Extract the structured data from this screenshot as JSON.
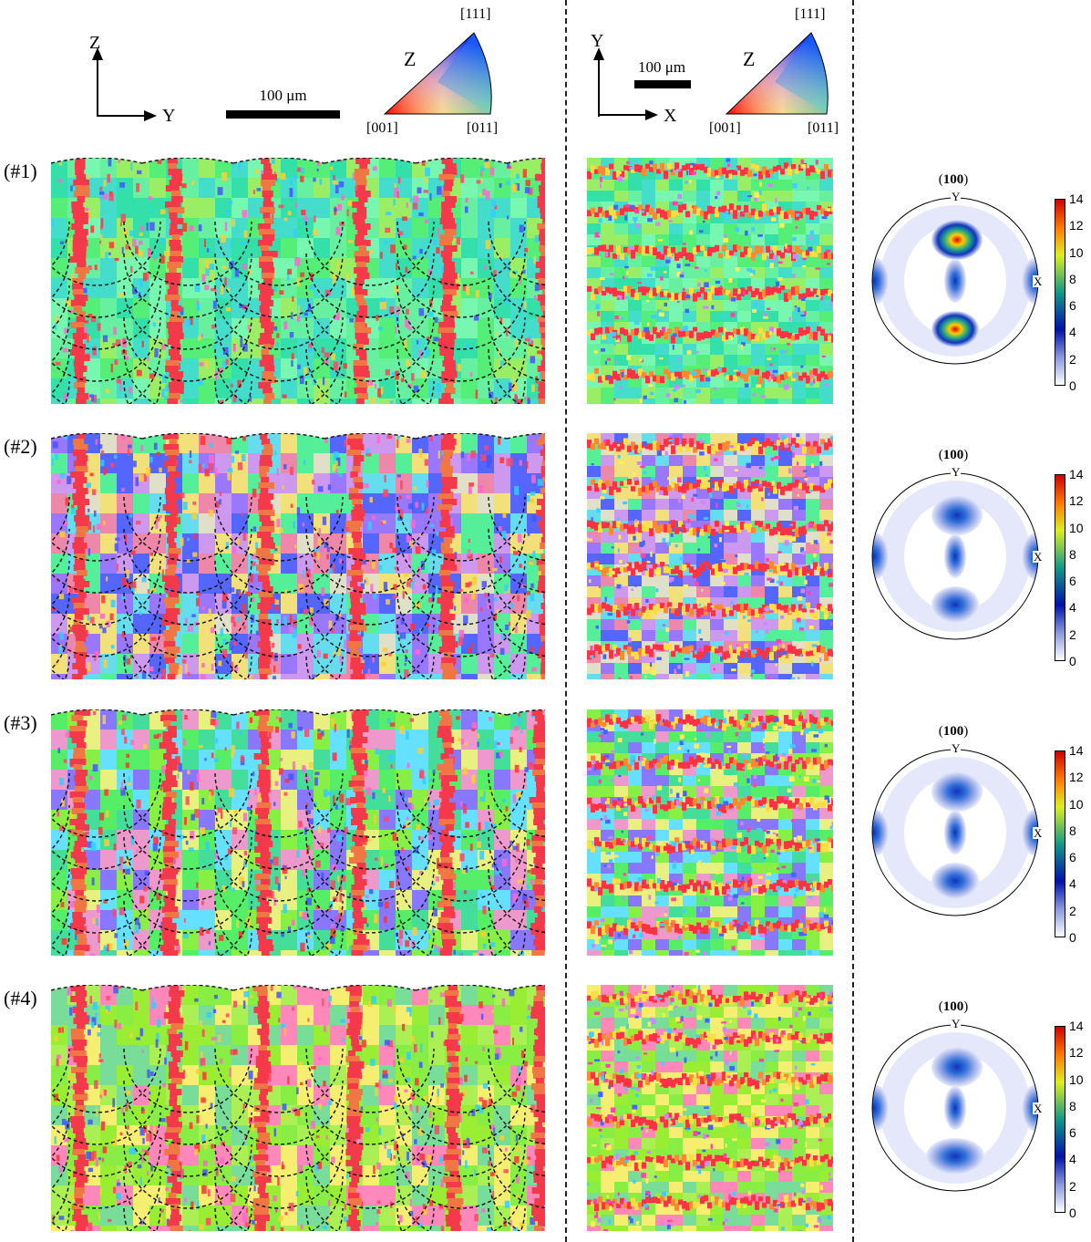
{
  "header_left": {
    "axis_vertical": "Z",
    "axis_horizontal": "Y",
    "scale_label": "100 μm",
    "ipf_direction": "Z",
    "ipf_corner_top": "[111]",
    "ipf_corner_left": "[001]",
    "ipf_corner_right": "[011]"
  },
  "header_middle": {
    "axis_vertical": "Y",
    "axis_horizontal": "X",
    "scale_label": "100 μm",
    "ipf_direction": "Z",
    "ipf_corner_top": "[111]",
    "ipf_corner_left": "[001]",
    "ipf_corner_right": "[011]"
  },
  "rows": [
    {
      "label": "(#1)",
      "pf_plane": "100",
      "pf_y": "Y",
      "pf_x": "X"
    },
    {
      "label": "(#2)",
      "pf_plane": "100",
      "pf_y": "Y",
      "pf_x": "X"
    },
    {
      "label": "(#3)",
      "pf_plane": "100",
      "pf_y": "Y",
      "pf_x": "X"
    },
    {
      "label": "(#4)",
      "pf_plane": "100",
      "pf_y": "Y",
      "pf_x": "X"
    }
  ],
  "colorbar_ticks": [
    "14",
    "12",
    "10",
    "8",
    "6",
    "4",
    "2",
    "0"
  ],
  "colors": {
    "ipf_red": "#ff2a2a",
    "ipf_green": "#33ee55",
    "ipf_blue": "#2244ff"
  }
}
